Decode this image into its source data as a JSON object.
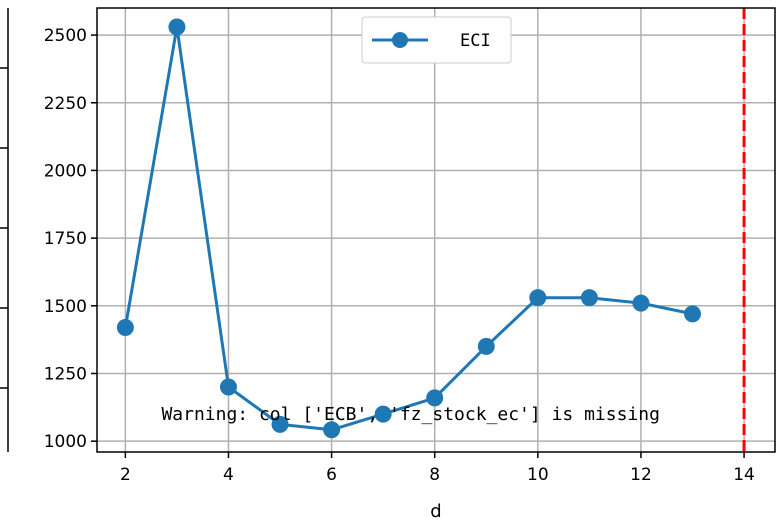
{
  "chart_data": {
    "type": "line",
    "title": "",
    "xlabel": "d",
    "ylabel": "",
    "xlim": [
      1.45,
      14.6
    ],
    "ylim": [
      960,
      2600
    ],
    "xticks": [
      2,
      4,
      6,
      8,
      10,
      12,
      14
    ],
    "yticks": [
      1000,
      1250,
      1500,
      1750,
      2000,
      2250,
      2500
    ],
    "grid": true,
    "legend_position": "top-center",
    "series": [
      {
        "name": "ECI",
        "color": "#1f77b4",
        "marker": "circle",
        "x": [
          2,
          3,
          4,
          5,
          6,
          7,
          8,
          9,
          10,
          11,
          12,
          13
        ],
        "y": [
          1420,
          2530,
          1200,
          1062,
          1042,
          1100,
          1160,
          1350,
          1530,
          1530,
          1510,
          1470
        ]
      }
    ],
    "reference_line": {
      "x": 14,
      "color": "#ff0000",
      "style": "dashed"
    },
    "annotation": {
      "text": "Warning: col ['ECB', 'fz_stock_ec'] is missing",
      "x": 2.7,
      "y": 1130
    }
  }
}
